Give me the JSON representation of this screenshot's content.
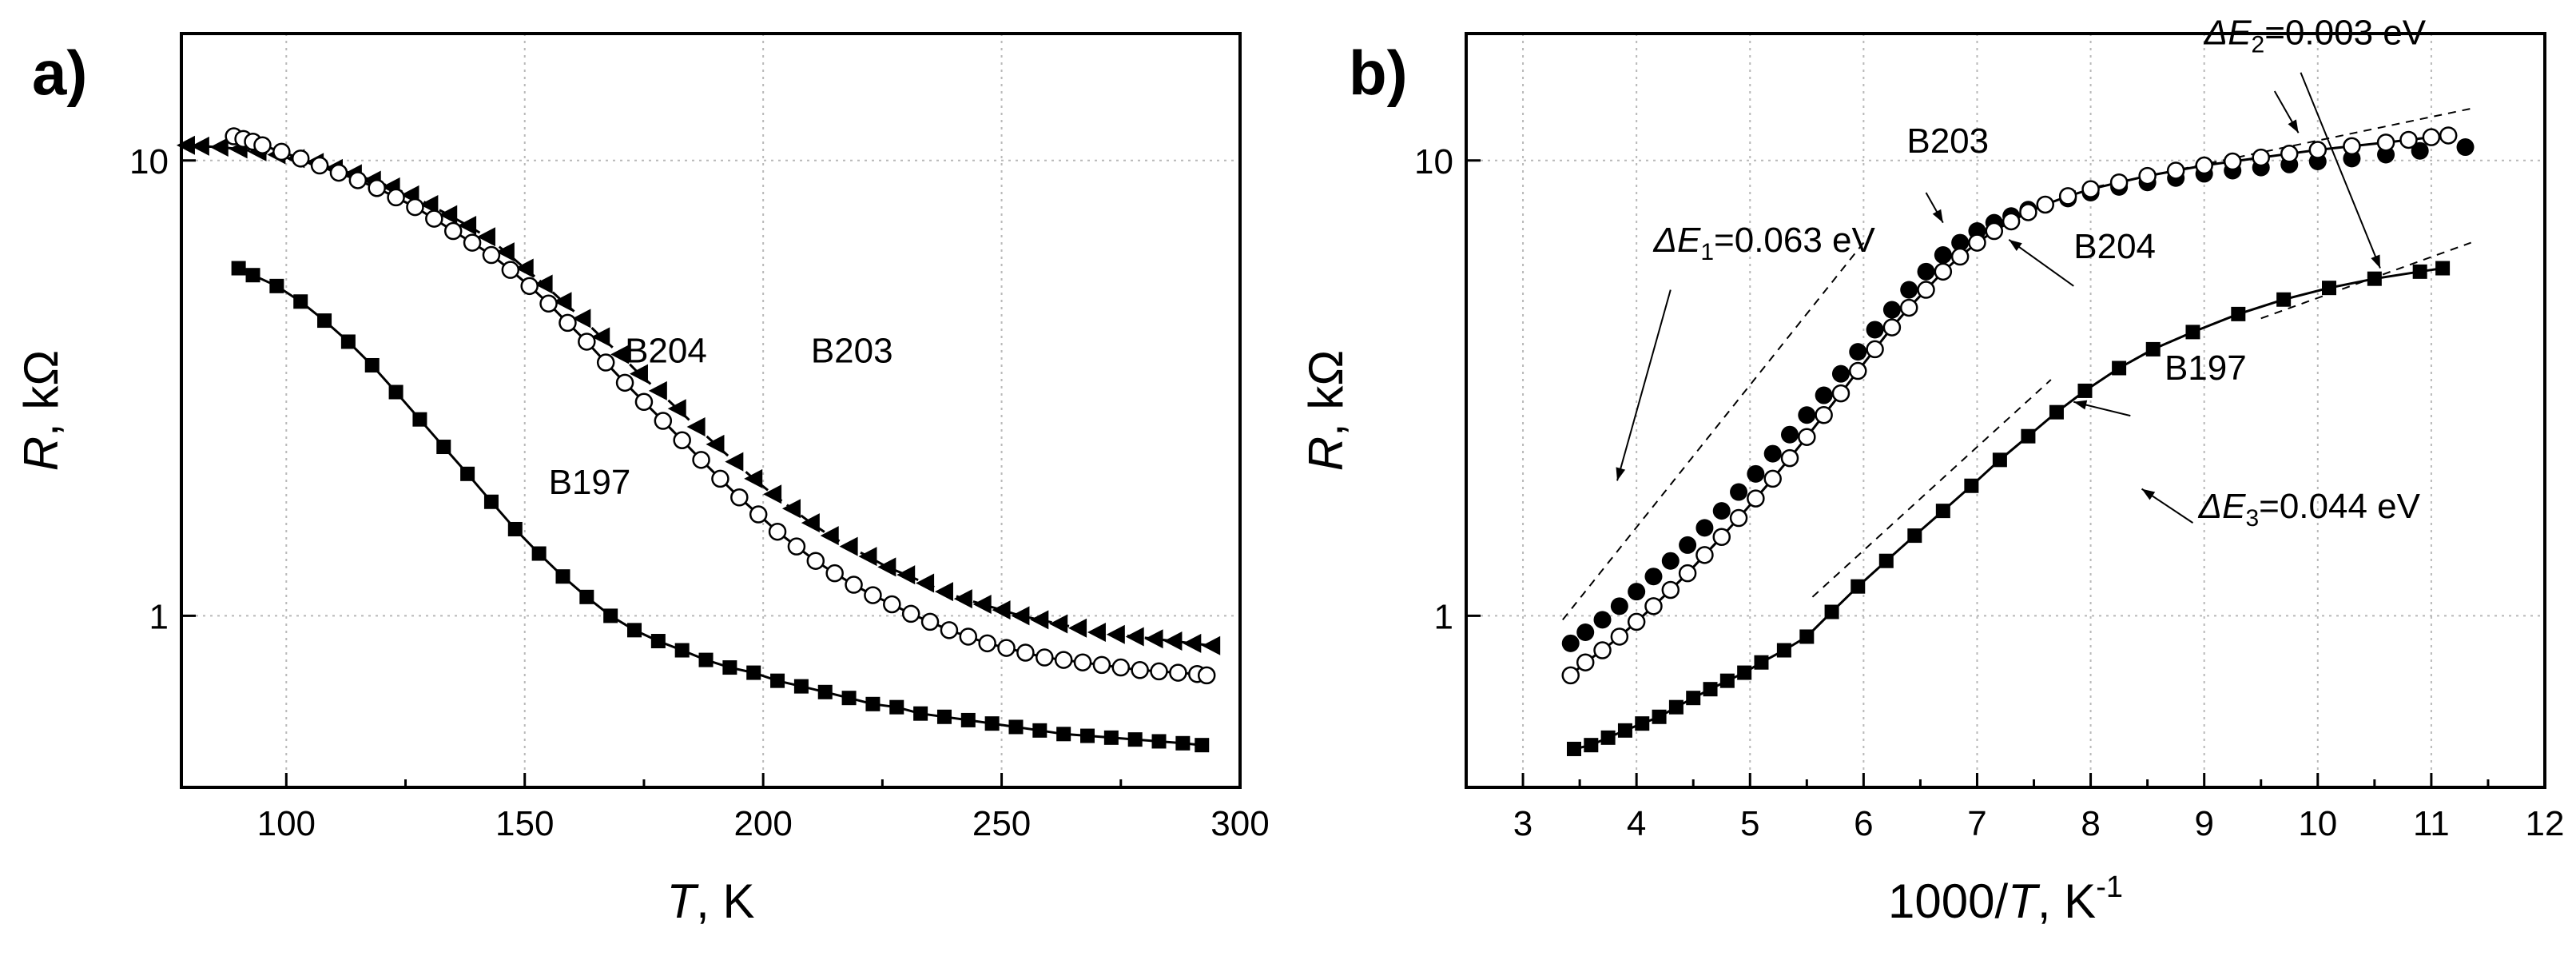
{
  "chart_data": [
    {
      "panel_label": "a)",
      "type": "line",
      "xlabel_var": "T",
      "xlabel_unit": ", K",
      "ylabel_var": "R",
      "ylabel_unit": ", kΩ",
      "yscale": "log",
      "xlim": [
        78,
        300
      ],
      "ylim": [
        0.42,
        19
      ],
      "xticks": [
        100,
        150,
        200,
        250,
        300
      ],
      "yticks": [
        1,
        10
      ],
      "ytick_labels": [
        "1",
        "10"
      ],
      "grid": true,
      "series": [
        {
          "name": "B203",
          "marker": "triangle-left",
          "line": "dashed",
          "x": [
            79,
            82,
            86,
            90,
            94,
            98,
            102,
            106,
            110,
            114,
            118,
            122,
            126,
            130,
            134,
            138,
            142,
            146,
            150,
            154,
            158,
            162,
            166,
            170,
            174,
            178,
            182,
            186,
            190,
            194,
            198,
            202,
            206,
            210,
            214,
            218,
            222,
            226,
            230,
            234,
            238,
            242,
            246,
            250,
            254,
            258,
            262,
            266,
            270,
            274,
            278,
            282,
            286,
            290,
            294
          ],
          "y": [
            10.8,
            10.75,
            10.7,
            10.6,
            10.45,
            10.3,
            10.1,
            9.9,
            9.6,
            9.35,
            9.05,
            8.75,
            8.4,
            8.0,
            7.6,
            7.2,
            6.8,
            6.3,
            5.8,
            5.35,
            4.9,
            4.5,
            4.1,
            3.75,
            3.4,
            3.12,
            2.85,
            2.6,
            2.38,
            2.18,
            2.0,
            1.85,
            1.72,
            1.6,
            1.5,
            1.42,
            1.35,
            1.28,
            1.23,
            1.18,
            1.13,
            1.09,
            1.06,
            1.03,
            1.0,
            0.98,
            0.96,
            0.94,
            0.92,
            0.91,
            0.9,
            0.89,
            0.88,
            0.87,
            0.86
          ]
        },
        {
          "name": "B204",
          "marker": "circle-open",
          "line": "solid",
          "x": [
            89,
            91,
            93,
            95,
            99,
            103,
            107,
            111,
            115,
            119,
            123,
            127,
            131,
            135,
            139,
            143,
            147,
            151,
            155,
            159,
            163,
            167,
            171,
            175,
            179,
            183,
            187,
            191,
            195,
            199,
            203,
            207,
            211,
            215,
            219,
            223,
            227,
            231,
            235,
            239,
            243,
            247,
            251,
            255,
            259,
            263,
            267,
            271,
            275,
            279,
            283,
            287,
            291,
            293
          ],
          "y": [
            11.3,
            11.15,
            11.0,
            10.8,
            10.45,
            10.1,
            9.75,
            9.4,
            9.05,
            8.7,
            8.3,
            7.9,
            7.45,
            7.0,
            6.6,
            6.2,
            5.75,
            5.3,
            4.85,
            4.4,
            4.0,
            3.6,
            3.25,
            2.95,
            2.68,
            2.43,
            2.2,
            2.0,
            1.82,
            1.67,
            1.53,
            1.42,
            1.32,
            1.24,
            1.17,
            1.11,
            1.06,
            1.01,
            0.97,
            0.93,
            0.9,
            0.87,
            0.85,
            0.83,
            0.81,
            0.8,
            0.79,
            0.78,
            0.77,
            0.76,
            0.755,
            0.75,
            0.745,
            0.74
          ]
        },
        {
          "name": "B197",
          "marker": "square",
          "line": "solid",
          "x": [
            90,
            93,
            98,
            103,
            108,
            113,
            118,
            123,
            128,
            133,
            138,
            143,
            148,
            153,
            158,
            163,
            168,
            173,
            178,
            183,
            188,
            193,
            198,
            203,
            208,
            213,
            218,
            223,
            228,
            233,
            238,
            243,
            248,
            253,
            258,
            263,
            268,
            273,
            278,
            283,
            288,
            292
          ],
          "y": [
            5.8,
            5.6,
            5.3,
            4.9,
            4.45,
            4.0,
            3.55,
            3.1,
            2.7,
            2.35,
            2.05,
            1.78,
            1.55,
            1.37,
            1.22,
            1.1,
            1.0,
            0.93,
            0.88,
            0.84,
            0.8,
            0.77,
            0.75,
            0.72,
            0.7,
            0.68,
            0.66,
            0.64,
            0.63,
            0.61,
            0.6,
            0.59,
            0.58,
            0.57,
            0.56,
            0.55,
            0.545,
            0.54,
            0.535,
            0.53,
            0.525,
            0.52
          ]
        }
      ],
      "annotations": [
        {
          "text": "B204",
          "x": 171,
          "y": 3.6
        },
        {
          "text": "B203",
          "x": 210,
          "y": 3.6
        },
        {
          "text": "B197",
          "x": 155,
          "y": 1.85
        }
      ]
    },
    {
      "panel_label": "b)",
      "type": "line",
      "xlabel_prefix": "1000/",
      "xlabel_var": "T",
      "xlabel_unit": ", K",
      "xlabel_sup": "-1",
      "ylabel_var": "R",
      "ylabel_unit": ", kΩ",
      "yscale": "log",
      "xlim": [
        2.5,
        12
      ],
      "ylim": [
        0.42,
        19
      ],
      "xticks": [
        3,
        4,
        5,
        6,
        7,
        8,
        9,
        10,
        11,
        12
      ],
      "yticks": [
        1,
        10
      ],
      "ytick_labels": [
        "1",
        "10"
      ],
      "grid": true,
      "series": [
        {
          "name": "B203",
          "marker": "circle-filled",
          "line": "none",
          "x": [
            3.42,
            3.55,
            3.7,
            3.85,
            4.0,
            4.15,
            4.3,
            4.45,
            4.6,
            4.75,
            4.9,
            5.05,
            5.2,
            5.35,
            5.5,
            5.65,
            5.8,
            5.95,
            6.1,
            6.25,
            6.4,
            6.55,
            6.7,
            6.85,
            7.0,
            7.15,
            7.3,
            7.45,
            7.6,
            7.8,
            8.0,
            8.25,
            8.5,
            8.75,
            9.0,
            9.25,
            9.5,
            9.75,
            10.0,
            10.3,
            10.6,
            10.9,
            11.3
          ],
          "y": [
            0.87,
            0.92,
            0.98,
            1.05,
            1.13,
            1.22,
            1.32,
            1.43,
            1.56,
            1.7,
            1.87,
            2.05,
            2.27,
            2.5,
            2.76,
            3.05,
            3.4,
            3.8,
            4.25,
            4.7,
            5.2,
            5.7,
            6.2,
            6.6,
            7.0,
            7.3,
            7.55,
            7.8,
            8.0,
            8.25,
            8.5,
            8.75,
            8.95,
            9.15,
            9.35,
            9.5,
            9.65,
            9.8,
            9.95,
            10.1,
            10.3,
            10.5,
            10.7
          ]
        },
        {
          "name": "B204",
          "marker": "circle-open",
          "line": "solid",
          "x": [
            3.42,
            3.55,
            3.7,
            3.85,
            4.0,
            4.15,
            4.3,
            4.45,
            4.6,
            4.75,
            4.9,
            5.05,
            5.2,
            5.35,
            5.5,
            5.65,
            5.8,
            5.95,
            6.1,
            6.25,
            6.4,
            6.55,
            6.7,
            6.85,
            7.0,
            7.15,
            7.3,
            7.45,
            7.6,
            7.8,
            8.0,
            8.25,
            8.5,
            8.75,
            9.0,
            9.25,
            9.5,
            9.75,
            10.0,
            10.3,
            10.6,
            10.8,
            11.0,
            11.15
          ],
          "y": [
            0.74,
            0.79,
            0.84,
            0.9,
            0.97,
            1.05,
            1.14,
            1.24,
            1.36,
            1.49,
            1.64,
            1.81,
            2.0,
            2.22,
            2.47,
            2.76,
            3.08,
            3.45,
            3.85,
            4.3,
            4.75,
            5.2,
            5.7,
            6.15,
            6.6,
            7.0,
            7.35,
            7.7,
            8.0,
            8.35,
            8.65,
            8.95,
            9.25,
            9.5,
            9.75,
            9.95,
            10.15,
            10.35,
            10.55,
            10.75,
            10.95,
            11.1,
            11.25,
            11.35
          ]
        },
        {
          "name": "B197",
          "marker": "square",
          "line": "solid",
          "x": [
            3.45,
            3.6,
            3.75,
            3.9,
            4.05,
            4.2,
            4.35,
            4.5,
            4.65,
            4.8,
            4.95,
            5.1,
            5.3,
            5.5,
            5.72,
            5.95,
            6.2,
            6.45,
            6.7,
            6.95,
            7.2,
            7.45,
            7.7,
            7.95,
            8.25,
            8.55,
            8.9,
            9.3,
            9.7,
            10.1,
            10.5,
            10.9,
            11.1
          ],
          "y": [
            0.51,
            0.52,
            0.54,
            0.56,
            0.58,
            0.6,
            0.63,
            0.66,
            0.69,
            0.72,
            0.75,
            0.79,
            0.84,
            0.9,
            1.02,
            1.16,
            1.32,
            1.5,
            1.7,
            1.93,
            2.2,
            2.48,
            2.8,
            3.12,
            3.5,
            3.85,
            4.2,
            4.6,
            4.95,
            5.25,
            5.5,
            5.7,
            5.8
          ]
        }
      ],
      "fit_lines": [
        {
          "x": [
            3.35,
            6.0
          ],
          "y": [
            0.98,
            6.6
          ]
        },
        {
          "x": [
            5.55,
            7.65
          ],
          "y": [
            1.1,
            3.3
          ]
        },
        {
          "x": [
            7.8,
            11.35
          ],
          "y": [
            8.5,
            13.0
          ]
        },
        {
          "x": [
            9.5,
            11.35
          ],
          "y": [
            4.5,
            6.6
          ]
        }
      ],
      "annotations": [
        {
          "delta": "ΔE",
          "sub": "1",
          "value": "=0.063 eV",
          "x": 4.15,
          "y": 6.3
        },
        {
          "delta": "ΔE",
          "sub": "2",
          "value": "=0.003 eV",
          "x": 9.0,
          "y": 18.0
        },
        {
          "delta": "ΔE",
          "sub": "3",
          "value": "=0.044 eV",
          "x": 8.95,
          "y": 1.64
        },
        {
          "text": "B203",
          "x": 6.38,
          "y": 10.4
        },
        {
          "text": "B204",
          "x": 7.85,
          "y": 6.1
        },
        {
          "text": "B197",
          "x": 8.65,
          "y": 3.3
        }
      ]
    }
  ]
}
